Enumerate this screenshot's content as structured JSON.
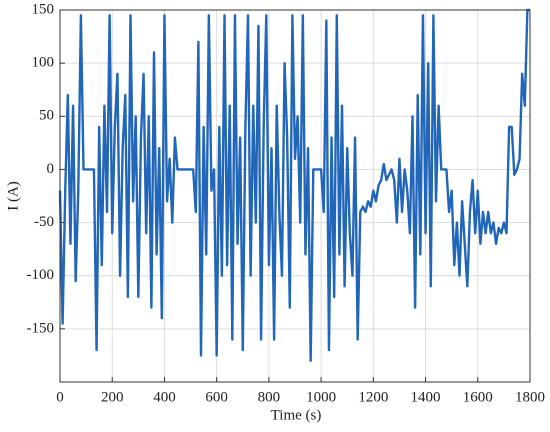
{
  "chart_data": {
    "type": "line",
    "x_label": "Time (s)",
    "y_label": "I (A)",
    "x": [
      0,
      10,
      20,
      30,
      40,
      50,
      60,
      70,
      80,
      90,
      100,
      110,
      120,
      130,
      140,
      150,
      160,
      170,
      180,
      190,
      200,
      210,
      220,
      230,
      240,
      250,
      260,
      270,
      280,
      290,
      300,
      310,
      320,
      330,
      340,
      350,
      360,
      370,
      380,
      390,
      400,
      410,
      420,
      430,
      440,
      450,
      460,
      470,
      480,
      490,
      500,
      510,
      520,
      530,
      540,
      550,
      560,
      570,
      580,
      590,
      600,
      610,
      620,
      630,
      640,
      650,
      660,
      670,
      680,
      690,
      700,
      710,
      720,
      730,
      740,
      750,
      760,
      770,
      780,
      790,
      800,
      810,
      820,
      830,
      840,
      850,
      860,
      870,
      880,
      890,
      900,
      910,
      920,
      930,
      940,
      950,
      960,
      970,
      980,
      990,
      1000,
      1010,
      1020,
      1030,
      1040,
      1050,
      1060,
      1070,
      1080,
      1090,
      1100,
      1110,
      1120,
      1130,
      1140,
      1150,
      1160,
      1170,
      1180,
      1190,
      1200,
      1210,
      1220,
      1230,
      1240,
      1250,
      1260,
      1270,
      1280,
      1290,
      1300,
      1310,
      1320,
      1330,
      1340,
      1350,
      1360,
      1370,
      1380,
      1390,
      1400,
      1410,
      1420,
      1430,
      1440,
      1450,
      1460,
      1470,
      1480,
      1490,
      1500,
      1510,
      1520,
      1530,
      1540,
      1550,
      1560,
      1570,
      1580,
      1590,
      1600,
      1610,
      1620,
      1630,
      1640,
      1650,
      1660,
      1670,
      1680,
      1690,
      1700,
      1710,
      1720,
      1730,
      1740,
      1750,
      1760,
      1770,
      1780,
      1790,
      1800
    ],
    "values": [
      -20,
      -145,
      -20,
      70,
      -70,
      60,
      -105,
      -20,
      145,
      0,
      0,
      0,
      0,
      0,
      -170,
      40,
      -90,
      60,
      -40,
      145,
      -60,
      40,
      90,
      -100,
      20,
      70,
      -120,
      145,
      -30,
      50,
      -120,
      30,
      90,
      -60,
      50,
      -130,
      110,
      -80,
      20,
      -140,
      145,
      -30,
      10,
      -50,
      30,
      0,
      0,
      0,
      0,
      0,
      0,
      0,
      -40,
      120,
      -175,
      40,
      -80,
      145,
      -20,
      0,
      -175,
      40,
      -100,
      145,
      -90,
      60,
      -160,
      145,
      -70,
      30,
      -170,
      40,
      145,
      -100,
      60,
      -50,
      135,
      -160,
      40,
      145,
      -90,
      20,
      -160,
      60,
      -40,
      -100,
      100,
      30,
      -130,
      145,
      10,
      50,
      -50,
      145,
      -80,
      20,
      -180,
      0,
      0,
      0,
      0,
      -40,
      140,
      -170,
      30,
      -120,
      145,
      -80,
      60,
      -110,
      20,
      -60,
      -100,
      30,
      -160,
      -40,
      -35,
      -40,
      -30,
      -35,
      -20,
      -30,
      -15,
      -10,
      5,
      -10,
      -5,
      0,
      -10,
      -50,
      10,
      -40,
      0,
      -20,
      -60,
      50,
      -130,
      70,
      -80,
      145,
      -60,
      100,
      -110,
      145,
      -30,
      60,
      0,
      0,
      0,
      -40,
      -20,
      -90,
      -50,
      -100,
      -30,
      -70,
      -110,
      -40,
      -10,
      -60,
      -20,
      -70,
      -40,
      -60,
      -40,
      -60,
      -50,
      -70,
      -55,
      -60,
      -50,
      -60,
      40,
      40,
      -5,
      0,
      10,
      90,
      60,
      150,
      150
    ],
    "color": "#2166b8",
    "xlim": [
      0,
      1800
    ],
    "xticks": [
      0,
      200,
      400,
      600,
      800,
      1000,
      1200,
      1400,
      1600,
      1800
    ],
    "ylim": [
      -200,
      150
    ],
    "yticks": [
      -150,
      -100,
      -50,
      0,
      50,
      100,
      150
    ],
    "grid": true
  }
}
